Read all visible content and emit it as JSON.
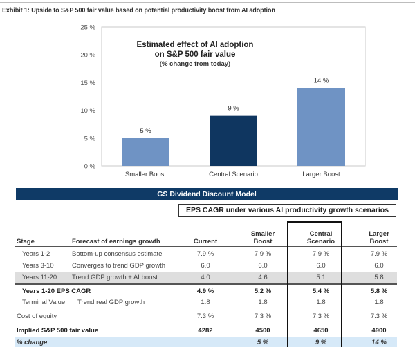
{
  "exhibit_title": "Exhibit 1: Upside to S&P 500 fair value based on potential productivity boost from AI adoption",
  "colors": {
    "bar_light": "#6f93c4",
    "bar_dark": "#0f3660",
    "banner": "#0f3a66",
    "highlight_row": "#d6e9f8",
    "gray_row": "#dedede"
  },
  "chart_data": {
    "type": "bar",
    "title": "Estimated effect of AI adoption",
    "title_line2": "on S&P 500 fair value",
    "subtitle": "(% change from today)",
    "categories": [
      "Smaller Boost",
      "Central Scenario",
      "Larger Boost"
    ],
    "values": [
      5,
      9,
      14
    ],
    "value_labels": [
      "5 %",
      "9 %",
      "14 %"
    ],
    "highlight_index": 1,
    "xlabel": "",
    "ylabel": "",
    "ylim": [
      0,
      25
    ],
    "yticks": [
      0,
      5,
      10,
      15,
      20,
      25
    ],
    "ytick_labels": [
      "0 %",
      "5 %",
      "10 %",
      "15 %",
      "20 %",
      "25 %"
    ],
    "grid": false,
    "legend": "none"
  },
  "table": {
    "banner": "GS Dividend Discount Model",
    "eps_header": "EPS CAGR under various AI productivity growth scenarios",
    "headers": {
      "stage": "Stage",
      "forecast": "Forecast of earnings growth",
      "current": "Current",
      "smaller_1": "Smaller",
      "smaller_2": "Boost",
      "central_1": "Central",
      "central_2": "Scenario",
      "larger_1": "Larger",
      "larger_2": "Boost"
    },
    "rows": [
      {
        "stage": "Years 1-2",
        "forecast": "Bottom-up consensus estimate",
        "current": "7.9 %",
        "smaller": "7.9 %",
        "central": "7.9 %",
        "larger": "7.9 %"
      },
      {
        "stage": "Years 3-10",
        "forecast": "Converges to trend GDP growth",
        "current": "6.0",
        "smaller": "6.0",
        "central": "6.0",
        "larger": "6.0"
      },
      {
        "stage": "Years 11-20",
        "forecast": "Trend GDP growth + AI boost",
        "current": "4.0",
        "smaller": "4.6",
        "central": "5.1",
        "larger": "5.8"
      },
      {
        "stage": "Years 1-20 EPS CAGR",
        "forecast": "",
        "current": "4.9 %",
        "smaller": "5.2 %",
        "central": "5.4 %",
        "larger": "5.8 %"
      },
      {
        "stage": "Terminal Value",
        "forecast": "Trend real GDP growth",
        "current": "1.8",
        "smaller": "1.8",
        "central": "1.8",
        "larger": "1.8"
      },
      {
        "stage": "Cost of equity",
        "forecast": "",
        "current": "7.3 %",
        "smaller": "7.3 %",
        "central": "7.3 %",
        "larger": "7.3 %"
      },
      {
        "stage": "Implied S&P 500 fair value",
        "forecast": "",
        "current": "4282",
        "smaller": "4500",
        "central": "4650",
        "larger": "4900"
      },
      {
        "stage": "% change",
        "forecast": "",
        "current": "",
        "smaller": "5 %",
        "central": "9 %",
        "larger": "14 %"
      }
    ]
  }
}
